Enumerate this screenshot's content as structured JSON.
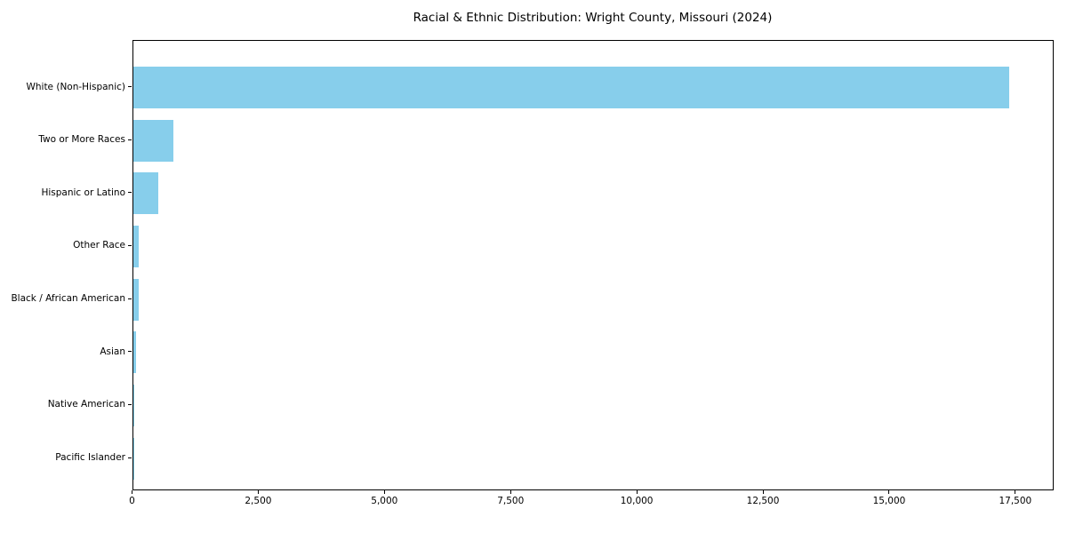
{
  "figure": {
    "background": "#ffffff"
  },
  "chart_data": {
    "type": "bar",
    "orientation": "horizontal",
    "title": "Racial & Ethnic Distribution: Wright County, Missouri (2024)",
    "categories": [
      "White (Non-Hispanic)",
      "Two or More Races",
      "Hispanic or Latino",
      "Other Race",
      "Black / African American",
      "Asian",
      "Native American",
      "Pacific Islander"
    ],
    "values": [
      17400,
      800,
      500,
      120,
      110,
      70,
      25,
      5
    ],
    "xlabel": "",
    "ylabel": "",
    "xlim": [
      0,
      18260
    ],
    "x_ticks": [
      0,
      2500,
      5000,
      7500,
      10000,
      12500,
      15000,
      17500
    ],
    "x_tick_labels": [
      "0",
      "2,500",
      "5,000",
      "7,500",
      "10,000",
      "12,500",
      "15,000",
      "17,500"
    ],
    "bar_color": "#87CEEB",
    "axis_color": "#000000",
    "text_color": "#000000",
    "grid": false,
    "legend": null,
    "sort": "descending"
  }
}
